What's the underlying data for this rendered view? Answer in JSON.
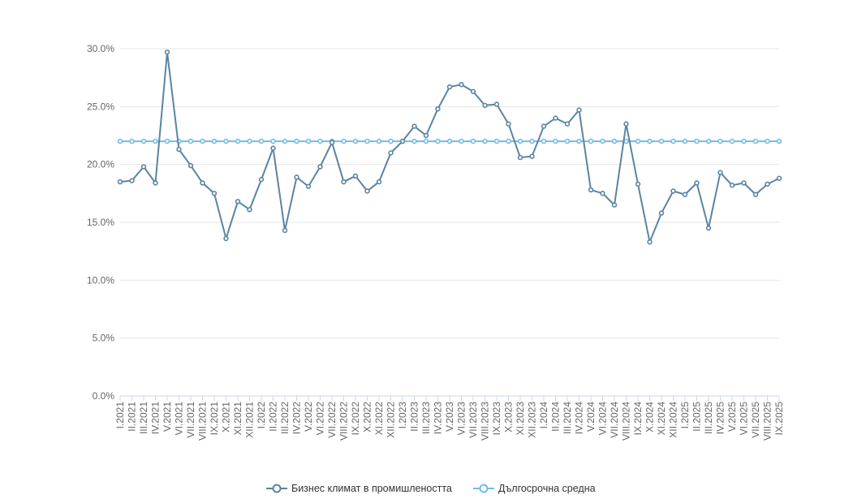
{
  "chart_data": {
    "type": "line",
    "title": "",
    "xlabel": "",
    "ylabel": "",
    "ylim": [
      0,
      30
    ],
    "y_ticks": [
      "0.0%",
      "5.0%",
      "10.0%",
      "15.0%",
      "20.0%",
      "25.0%",
      "30.0%"
    ],
    "grid": true,
    "legend_position": "bottom-center",
    "categories": [
      "I.2021",
      "II.2021",
      "III.2021",
      "IV.2021",
      "V.2021",
      "VI.2021",
      "VII.2021",
      "VIII.2021",
      "IX.2021",
      "X.2021",
      "XI.2021",
      "XII.2021",
      "I.2022",
      "II.2022",
      "III.2022",
      "IV.2022",
      "V.2022",
      "VI.2022",
      "VII.2022",
      "VIII.2022",
      "IX.2022",
      "X.2022",
      "XI.2022",
      "XII.2022",
      "I.2023",
      "II.2023",
      "III.2023",
      "IV.2023",
      "V.2023",
      "VI.2023",
      "VII.2023",
      "VIII.2023",
      "IX.2023",
      "X.2023",
      "XI.2023",
      "XII.2023",
      "I.2024",
      "II.2024",
      "III.2024",
      "IV.2024",
      "V.2024",
      "VI.2024",
      "VII.2024",
      "VIII.2024",
      "IX.2024",
      "X.2024",
      "XI.2024",
      "XII.2024",
      "I.2025",
      "II.2025",
      "III.2025",
      "IV.2025",
      "V.2025",
      "VI.2025",
      "VII.2025",
      "VIII.2025",
      "IX.2025"
    ],
    "series": [
      {
        "name": "Бизнес климат в промишлеността",
        "color": "#5b84a1",
        "values": [
          18.5,
          18.6,
          19.8,
          18.4,
          29.7,
          21.3,
          19.9,
          18.4,
          17.5,
          13.6,
          16.8,
          16.1,
          18.7,
          21.4,
          14.3,
          18.9,
          18.1,
          19.8,
          21.9,
          18.5,
          19.0,
          17.7,
          18.5,
          21.0,
          22.0,
          23.3,
          22.5,
          24.8,
          26.7,
          26.9,
          26.3,
          25.1,
          25.2,
          23.5,
          20.6,
          20.7,
          23.3,
          24.0,
          23.5,
          24.7,
          17.8,
          17.5,
          16.5,
          23.5,
          18.3,
          13.3,
          15.8,
          17.7,
          17.4,
          18.4,
          14.5,
          19.3,
          18.2,
          18.4,
          17.4,
          18.3,
          18.8
        ]
      },
      {
        "name": "Дългосрочна средна",
        "color": "#72bce6",
        "values": [
          22,
          22,
          22,
          22,
          22,
          22,
          22,
          22,
          22,
          22,
          22,
          22,
          22,
          22,
          22,
          22,
          22,
          22,
          22,
          22,
          22,
          22,
          22,
          22,
          22,
          22,
          22,
          22,
          22,
          22,
          22,
          22,
          22,
          22,
          22,
          22,
          22,
          22,
          22,
          22,
          22,
          22,
          22,
          22,
          22,
          22,
          22,
          22,
          22,
          22,
          22,
          22,
          22,
          22,
          22,
          22,
          22
        ]
      }
    ]
  }
}
